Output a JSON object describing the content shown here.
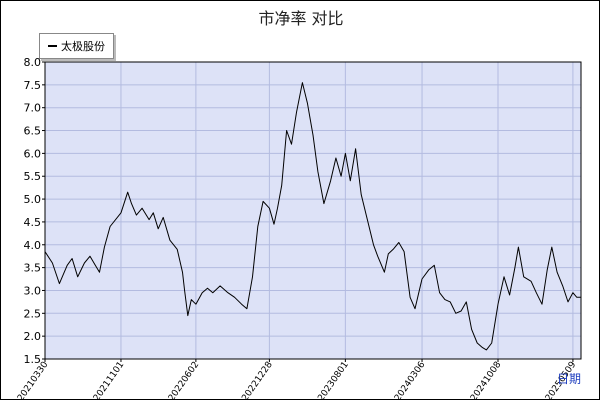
{
  "chart_data": {
    "type": "line",
    "title": "市净率  对比",
    "xlabel": "日期",
    "ylabel": "",
    "ylim": [
      1.5,
      8.0
    ],
    "y_ticks": [
      "1.5",
      "2.0",
      "2.5",
      "3.0",
      "3.5",
      "4.0",
      "4.5",
      "5.0",
      "5.5",
      "6.0",
      "6.5",
      "7.0",
      "7.5",
      "8.0"
    ],
    "x_ticks": [
      "20210330",
      "20211101",
      "20220602",
      "20221228",
      "20230801",
      "20240306",
      "20241008",
      "20250509"
    ],
    "grid": true,
    "legend": "top-left",
    "series": [
      {
        "name": "太极股份",
        "color": "#000000",
        "values": [
          [
            "20210330",
            3.85
          ],
          [
            "20210420",
            3.6
          ],
          [
            "20210510",
            3.15
          ],
          [
            "20210601",
            3.55
          ],
          [
            "20210615",
            3.7
          ],
          [
            "20210701",
            3.3
          ],
          [
            "20210720",
            3.6
          ],
          [
            "20210805",
            3.75
          ],
          [
            "20210820",
            3.55
          ],
          [
            "20210901",
            3.4
          ],
          [
            "20210915",
            3.95
          ],
          [
            "20211001",
            4.4
          ],
          [
            "20211101",
            4.7
          ],
          [
            "20211120",
            5.15
          ],
          [
            "20211201",
            4.9
          ],
          [
            "20211215",
            4.65
          ],
          [
            "20211231",
            4.8
          ],
          [
            "20220120",
            4.55
          ],
          [
            "20220201",
            4.7
          ],
          [
            "20220215",
            4.35
          ],
          [
            "20220301",
            4.6
          ],
          [
            "20220320",
            4.1
          ],
          [
            "20220410",
            3.9
          ],
          [
            "20220425",
            3.4
          ],
          [
            "20220501",
            3.0
          ],
          [
            "20220510",
            2.45
          ],
          [
            "20220520",
            2.8
          ],
          [
            "20220602",
            2.7
          ],
          [
            "20220620",
            2.95
          ],
          [
            "20220705",
            3.05
          ],
          [
            "20220720",
            2.95
          ],
          [
            "20220810",
            3.1
          ],
          [
            "20220901",
            2.95
          ],
          [
            "20220920",
            2.85
          ],
          [
            "20221010",
            2.7
          ],
          [
            "20221025",
            2.6
          ],
          [
            "20221110",
            3.3
          ],
          [
            "20221125",
            4.4
          ],
          [
            "20221210",
            4.95
          ],
          [
            "20221228",
            4.8
          ],
          [
            "20230110",
            4.45
          ],
          [
            "20230120",
            4.8
          ],
          [
            "20230201",
            5.3
          ],
          [
            "20230215",
            6.5
          ],
          [
            "20230301",
            6.2
          ],
          [
            "20230315",
            6.9
          ],
          [
            "20230401",
            7.55
          ],
          [
            "20230415",
            7.1
          ],
          [
            "20230501",
            6.4
          ],
          [
            "20230515",
            5.6
          ],
          [
            "20230601",
            4.9
          ],
          [
            "20230620",
            5.4
          ],
          [
            "20230705",
            5.9
          ],
          [
            "20230720",
            5.5
          ],
          [
            "20230801",
            6.0
          ],
          [
            "20230815",
            5.4
          ],
          [
            "20230830",
            6.1
          ],
          [
            "20230915",
            5.1
          ],
          [
            "20231001",
            4.6
          ],
          [
            "20231020",
            4.0
          ],
          [
            "20231101",
            3.75
          ],
          [
            "20231120",
            3.4
          ],
          [
            "20231201",
            3.8
          ],
          [
            "20231215",
            3.9
          ],
          [
            "20231231",
            4.05
          ],
          [
            "20240115",
            3.85
          ],
          [
            "20240201",
            2.85
          ],
          [
            "20240215",
            2.6
          ],
          [
            "20240306",
            3.25
          ],
          [
            "20240325",
            3.45
          ],
          [
            "20240410",
            3.55
          ],
          [
            "20240425",
            2.95
          ],
          [
            "20240510",
            2.8
          ],
          [
            "20240525",
            2.75
          ],
          [
            "20240610",
            2.5
          ],
          [
            "20240625",
            2.55
          ],
          [
            "20240710",
            2.75
          ],
          [
            "20240725",
            2.15
          ],
          [
            "20240810",
            1.85
          ],
          [
            "20240825",
            1.75
          ],
          [
            "20240905",
            1.7
          ],
          [
            "20240920",
            1.85
          ],
          [
            "20241008",
            2.7
          ],
          [
            "20241025",
            3.3
          ],
          [
            "20241110",
            2.9
          ],
          [
            "20241125",
            3.5
          ],
          [
            "20241205",
            3.95
          ],
          [
            "20241220",
            3.3
          ],
          [
            "20250110",
            3.2
          ],
          [
            "20250125",
            2.95
          ],
          [
            "20250210",
            2.7
          ],
          [
            "20250225",
            3.45
          ],
          [
            "20250310",
            3.95
          ],
          [
            "20250325",
            3.4
          ],
          [
            "20250410",
            3.1
          ],
          [
            "20250425",
            2.75
          ],
          [
            "20250509",
            2.95
          ],
          [
            "20250520",
            2.85
          ],
          [
            "20250601",
            2.85
          ]
        ]
      }
    ]
  }
}
